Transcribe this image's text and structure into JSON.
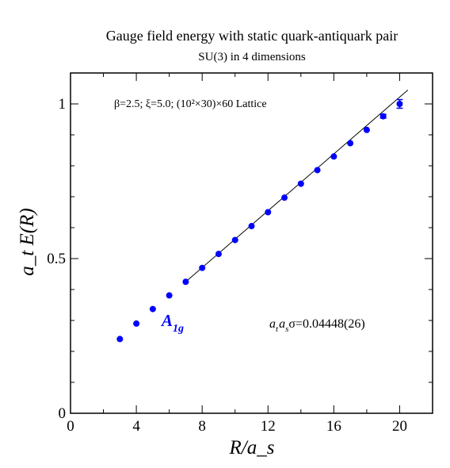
{
  "chart_data": {
    "type": "scatter",
    "title": "Gauge field energy with static quark-antiquark pair",
    "subtitle": "SU(3) in 4 dimensions",
    "xlabel": "R/a_s",
    "ylabel": "a_t E(R)",
    "xlim": [
      0,
      22
    ],
    "ylim": [
      0,
      1.1
    ],
    "x_ticks": [
      0,
      4,
      8,
      12,
      16,
      20
    ],
    "y_ticks": [
      0,
      0.5,
      1
    ],
    "x_tick_labels": [
      "0",
      "4",
      "8",
      "12",
      "16",
      "20"
    ],
    "y_tick_labels": [
      "0",
      "0.5",
      "1"
    ],
    "grid": false,
    "colors": {
      "points": "#0000ff",
      "fit_line": "#000000",
      "frame": "#000000"
    },
    "annotations": {
      "params": "β=2.5;  ξ=5.0; (10²×30)×60 Lattice",
      "series_label_main": "A",
      "series_label_sub": "1g",
      "sigma_parts": [
        "a",
        "t",
        "a",
        "s",
        "σ=0.04448(26)"
      ]
    },
    "series": [
      {
        "x": [
          3,
          4,
          5,
          6,
          7,
          8,
          9,
          10,
          11,
          12,
          13,
          14,
          15,
          16,
          17,
          18,
          19,
          20
        ],
        "y": [
          0.24,
          0.29,
          0.337,
          0.381,
          0.425,
          0.47,
          0.515,
          0.56,
          0.605,
          0.65,
          0.697,
          0.742,
          0.786,
          0.83,
          0.873,
          0.916,
          0.96,
          1.0
        ],
        "y_err": [
          0,
          0,
          0,
          0,
          0,
          0,
          0,
          0,
          0,
          0,
          0,
          0,
          0,
          0,
          0,
          0,
          0.006,
          0.014
        ]
      }
    ],
    "fit_line": {
      "x": [
        7,
        20.5
      ],
      "y": [
        0.425,
        1.045
      ]
    }
  }
}
